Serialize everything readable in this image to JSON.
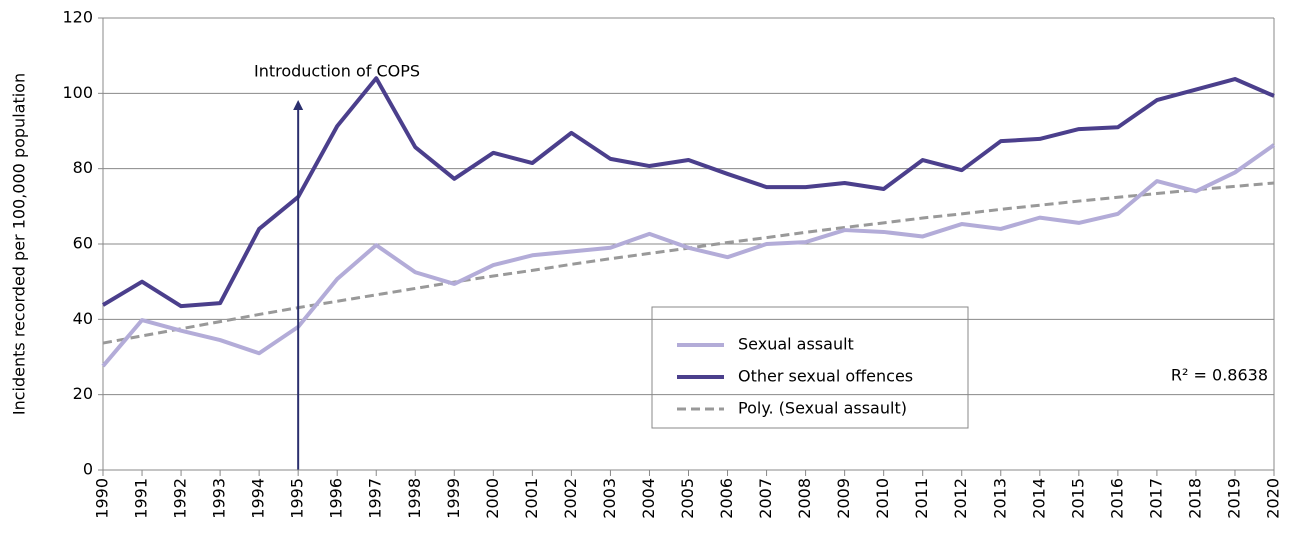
{
  "chart_data": {
    "type": "line",
    "y_label": "Incidents recorded per 100,000 population",
    "annotation": "Introduction of COPS",
    "r_squared": "R² = 0.8638",
    "categories": [
      "1990",
      "1991",
      "1992",
      "1993",
      "1994",
      "1995",
      "1996",
      "1997",
      "1998",
      "1999",
      "2000",
      "2001",
      "2002",
      "2003",
      "2004",
      "2005",
      "2006",
      "2007",
      "2008",
      "2009",
      "2010",
      "2011",
      "2012",
      "2013",
      "2014",
      "2015",
      "2016",
      "2017",
      "2018",
      "2019",
      "2020"
    ],
    "series": [
      {
        "name": "Sexual assault",
        "color": "#b3acd8",
        "dash": false,
        "values": [
          27.6,
          39.8,
          37,
          34.5,
          31,
          38,
          50.7,
          59.7,
          52.5,
          49.4,
          54.4,
          57,
          58,
          59,
          62.7,
          59,
          56.5,
          60,
          60.5,
          63.7,
          63.2,
          62,
          65.3,
          64,
          67,
          65.6,
          68,
          76.7,
          74,
          79,
          86.3
        ]
      },
      {
        "name": "Other sexual offences",
        "color": "#4b3f8c",
        "dash": false,
        "values": [
          43.8,
          50,
          43.5,
          44.3,
          64,
          72.5,
          91.3,
          104,
          85.7,
          77.3,
          84.2,
          81.5,
          89.5,
          82.6,
          80.7,
          82.3,
          78.6,
          75.1,
          75.1,
          76.2,
          74.6,
          82.3,
          79.6,
          87.3,
          87.9,
          90.5,
          91,
          98.2,
          101,
          103.8,
          99.3
        ]
      },
      {
        "name": "Poly. (Sexual assault)",
        "color": "#999999",
        "dash": true,
        "values": [
          33.7,
          35.6,
          37.5,
          39.4,
          41.3,
          43.1,
          44.8,
          46.5,
          48.2,
          49.9,
          51.5,
          53.0,
          54.6,
          56.1,
          57.5,
          58.9,
          60.4,
          61.7,
          63.1,
          64.4,
          65.6,
          66.9,
          68.0,
          69.2,
          70.3,
          71.4,
          72.4,
          73.4,
          74.4,
          75.3,
          76.2
        ]
      }
    ],
    "ylim": [
      0,
      120
    ],
    "yticks": [
      0,
      20,
      40,
      60,
      80,
      100,
      120
    ],
    "grid": true
  }
}
